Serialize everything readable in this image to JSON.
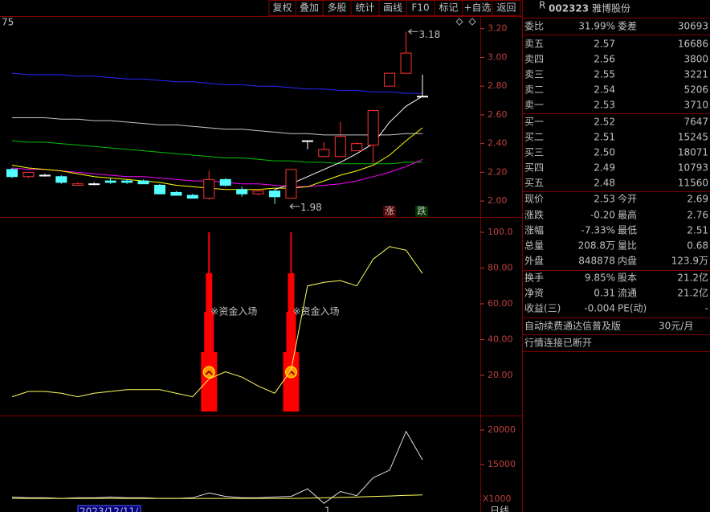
{
  "toolbar": [
    "复权",
    "叠加",
    "多股",
    "统计",
    "画线",
    "F10",
    "标记",
    "+自选",
    "返回"
  ],
  "quote": {
    "badge": "R",
    "code": "002323",
    "name": "雅博股份",
    "ratio": {
      "label": "委比",
      "value": "31.99%",
      "color": "#ff4040",
      "label2": "委差",
      "value2": "30693",
      "color2": "#ffff00"
    },
    "asks": [
      {
        "label": "卖五",
        "price": "2.57",
        "volume": "16686"
      },
      {
        "label": "卖四",
        "price": "2.56",
        "volume": "3800"
      },
      {
        "label": "卖三",
        "price": "2.55",
        "volume": "3221"
      },
      {
        "label": "卖二",
        "price": "2.54",
        "volume": "5206"
      },
      {
        "label": "卖一",
        "price": "2.53",
        "volume": "3710"
      }
    ],
    "bids": [
      {
        "label": "买一",
        "price": "2.52",
        "volume": "7647"
      },
      {
        "label": "买二",
        "price": "2.51",
        "volume": "15245"
      },
      {
        "label": "买三",
        "price": "2.50",
        "volume": "18071"
      },
      {
        "label": "买四",
        "price": "2.49",
        "volume": "10793"
      },
      {
        "label": "买五",
        "price": "2.48",
        "volume": "11560"
      }
    ],
    "price_color": "#00e000",
    "volume_color": "#ffff00",
    "stats": [
      {
        "label": "现价",
        "value": "2.53",
        "color": "#00e000",
        "label2": "今开",
        "value2": "2.69",
        "color2": "#00e000"
      },
      {
        "label": "涨跌",
        "value": "-0.20",
        "color": "#00e000",
        "label2": "最高",
        "value2": "2.76",
        "color2": "#ff4040"
      },
      {
        "label": "涨幅",
        "value": "-7.33%",
        "color": "#00e000",
        "label2": "最低",
        "value2": "2.51",
        "color2": "#00e000"
      },
      {
        "label": "总量",
        "value": "208.8万",
        "color": "#ffff00",
        "label2": "量比",
        "value2": "0.68",
        "color2": "#ffff00"
      },
      {
        "label": "外盘",
        "value": "848878",
        "color": "#ff4040",
        "label2": "内盘",
        "value2": "123.9万",
        "color2": "#00e000"
      }
    ],
    "stats2": [
      {
        "label": "换手",
        "value": "9.85%",
        "color": "#e0e0e0",
        "label2": "股本",
        "value2": "21.2亿",
        "color2": "#e0e0e0"
      },
      {
        "label": "净资",
        "value": "0.31",
        "color": "#e0e0e0",
        "label2": "流通",
        "value2": "21.2亿",
        "color2": "#e0e0e0"
      },
      {
        "label": "收益(三)",
        "value": "-0.004",
        "color": "#e0e0e0",
        "label2": "PE(动)",
        "value2": "-",
        "color2": "#e0e0e0"
      }
    ]
  },
  "promo": {
    "text": "自动续费通达信普及版",
    "price": "30元/月"
  },
  "status": "行情连接已断开",
  "chart_data": [
    {
      "type": "candlestick",
      "corner_label": "75",
      "rise_marker": "涨",
      "fall_marker": "跌",
      "ylim": [
        1.9,
        3.26
      ],
      "yticks": [
        {
          "value": 2,
          "label": "2.00"
        },
        {
          "value": 2.2,
          "label": "2.20"
        },
        {
          "value": 2.4,
          "label": "2.40"
        },
        {
          "value": 2.6,
          "label": "2.60"
        },
        {
          "value": 2.8,
          "label": "2.80"
        },
        {
          "value": 3,
          "label": "3.00"
        },
        {
          "value": 3.2,
          "label": "3.20"
        }
      ],
      "up_color": "#ff3232",
      "down_color": "#54ffff",
      "flat_color": "#ffffff",
      "candles": {
        "open": [
          2.22,
          2.17,
          2.18,
          2.17,
          2.11,
          2.12,
          2.14,
          2.14,
          2.14,
          2.11,
          2.06,
          2.04,
          2.02,
          2.15,
          2.08,
          2.05,
          2.07,
          2.02,
          2.42,
          2.31,
          2.31,
          2.35,
          2.39,
          2.8,
          2.89,
          2.73
        ],
        "high": [
          2.23,
          2.2,
          2.19,
          2.18,
          2.13,
          2.13,
          2.16,
          2.15,
          2.15,
          2.12,
          2.07,
          2.05,
          2.21,
          2.16,
          2.1,
          2.08,
          2.08,
          2.22,
          2.42,
          2.41,
          2.55,
          2.41,
          2.63,
          2.89,
          3.18,
          2.88
        ],
        "low": [
          2.16,
          2.16,
          2.17,
          2.12,
          2.11,
          2.11,
          2.12,
          2.12,
          2.12,
          2.05,
          2.04,
          2.02,
          2.01,
          2.1,
          2.03,
          2.04,
          1.98,
          2.02,
          2.36,
          2.31,
          2.31,
          2.35,
          2.26,
          2.8,
          2.89,
          2.73
        ],
        "close": [
          2.17,
          2.2,
          2.18,
          2.13,
          2.12,
          2.12,
          2.13,
          2.13,
          2.12,
          2.05,
          2.04,
          2.02,
          2.15,
          2.11,
          2.05,
          2.07,
          2.03,
          2.22,
          2.42,
          2.36,
          2.45,
          2.4,
          2.63,
          2.89,
          3.03,
          2.73
        ]
      },
      "series": [
        {
          "color": "#2828ff",
          "values": [
            2.89,
            2.88,
            2.88,
            2.88,
            2.87,
            2.87,
            2.86,
            2.85,
            2.85,
            2.84,
            2.83,
            2.83,
            2.82,
            2.81,
            2.81,
            2.8,
            2.8,
            2.79,
            2.78,
            2.78,
            2.77,
            2.77,
            2.76,
            2.76,
            2.75,
            2.75
          ]
        },
        {
          "color": "#c8c8c8",
          "values": [
            2.58,
            2.58,
            2.58,
            2.57,
            2.57,
            2.56,
            2.56,
            2.55,
            2.54,
            2.53,
            2.53,
            2.52,
            2.51,
            2.5,
            2.5,
            2.49,
            2.48,
            2.47,
            2.47,
            2.46,
            2.46,
            2.46,
            2.46,
            2.46,
            2.47,
            2.47
          ]
        },
        {
          "color": "#00c000",
          "values": [
            2.42,
            2.41,
            2.41,
            2.4,
            2.39,
            2.38,
            2.37,
            2.36,
            2.35,
            2.34,
            2.33,
            2.32,
            2.31,
            2.3,
            2.3,
            2.29,
            2.28,
            2.28,
            2.27,
            2.27,
            2.26,
            2.26,
            2.26,
            2.26,
            2.27,
            2.27
          ]
        },
        {
          "color": "#ff00ff",
          "values": [
            2.23,
            2.22,
            2.22,
            2.21,
            2.2,
            2.19,
            2.18,
            2.17,
            2.17,
            2.16,
            2.15,
            2.14,
            2.14,
            2.13,
            2.12,
            2.12,
            2.11,
            2.1,
            2.1,
            2.11,
            2.12,
            2.14,
            2.17,
            2.2,
            2.24,
            2.29
          ]
        },
        {
          "color": "#ffff00",
          "values": [
            2.25,
            2.23,
            2.22,
            2.21,
            2.19,
            2.17,
            2.16,
            2.15,
            2.14,
            2.13,
            2.11,
            2.1,
            2.09,
            2.08,
            2.08,
            2.08,
            2.09,
            2.09,
            2.1,
            2.14,
            2.18,
            2.21,
            2.25,
            2.32,
            2.42,
            2.51
          ]
        },
        {
          "color": "#ffffff",
          "values": [
            null,
            null,
            null,
            null,
            null,
            null,
            null,
            null,
            null,
            null,
            null,
            null,
            null,
            null,
            null,
            null,
            2.08,
            2.12,
            2.17,
            2.22,
            2.27,
            2.33,
            2.4,
            2.55,
            2.66,
            2.73
          ]
        }
      ]
    },
    {
      "type": "line",
      "ylim": [
        -1.6,
        106.3
      ],
      "yticks": [
        {
          "value": 20,
          "label": "20.00"
        },
        {
          "value": 40,
          "label": "40.00"
        },
        {
          "value": 60,
          "label": "60.00"
        },
        {
          "value": 80,
          "label": "80.00"
        },
        {
          "value": 100,
          "label": "100.0"
        }
      ],
      "series": [
        {
          "color": "#ffff60",
          "values": [
            8,
            11,
            11,
            10,
            8,
            10,
            11,
            12,
            12,
            12,
            10,
            8,
            18,
            22,
            19,
            14,
            10,
            23,
            70,
            72,
            73,
            70,
            85,
            92,
            90,
            77
          ]
        }
      ],
      "signals": [
        {
          "index": 12,
          "value": 100,
          "label": "※资金入场"
        },
        {
          "index": 17,
          "value": 100,
          "label": "※资金入场"
        }
      ],
      "signal_color": "#ff0000",
      "signal_label_color": "#ff40ff"
    },
    {
      "type": "line",
      "ylim": [
        8140,
        21744
      ],
      "yticks": [
        15000,
        20000
      ],
      "unit_label": "X1000",
      "date_label": "2023/12/11/",
      "cursor_label": "1",
      "period_label": "日线",
      "series": [
        {
          "color": "#e0e0e0",
          "values": [
            10300,
            10200,
            10200,
            10100,
            10200,
            10200,
            10300,
            10200,
            10200,
            10100,
            10100,
            10200,
            10900,
            10400,
            10200,
            10200,
            10300,
            10400,
            11500,
            9400,
            11100,
            10500,
            13100,
            14200,
            19800,
            15700
          ]
        },
        {
          "color": "#ffff60",
          "values": [
            10100,
            10100,
            10100,
            10100,
            10100,
            10100,
            10100,
            10100,
            10100,
            10100,
            10100,
            10100,
            10100,
            10100,
            10100,
            10100,
            10100,
            10100,
            10150,
            10200,
            10250,
            10300,
            10400,
            10450,
            10550,
            10600
          ]
        }
      ]
    }
  ]
}
